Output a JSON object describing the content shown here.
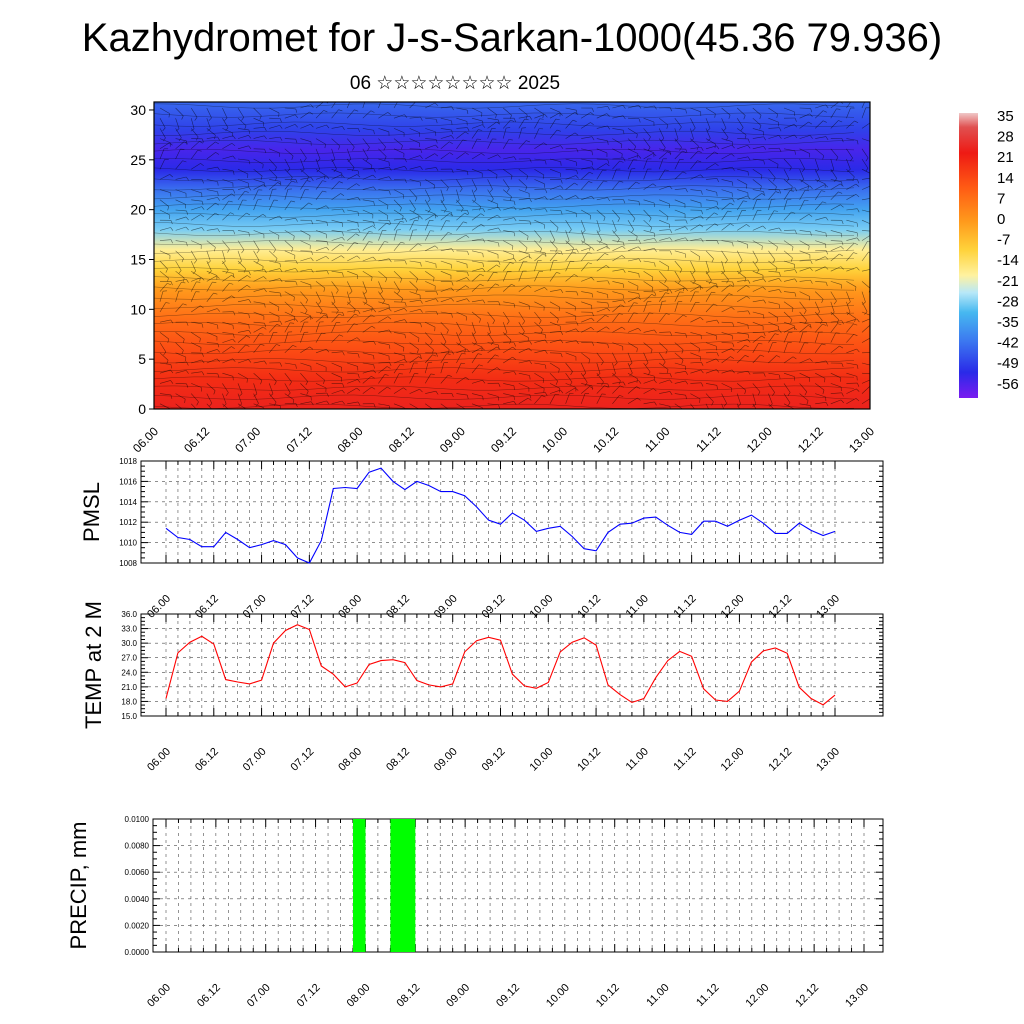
{
  "title": "Kazhydromet for J-s-Sarkan-1000(45.36 79.936)",
  "subtitle": "06 ☆☆☆☆☆☆☆☆ 2025",
  "time_labels": [
    "06.00",
    "06.12",
    "07.00",
    "07.12",
    "08.00",
    "08.12",
    "09.00",
    "09.12",
    "10.00",
    "10.12",
    "11.00",
    "11.12",
    "12.00",
    "12.12",
    "13.00"
  ],
  "chart_data": [
    {
      "type": "heatmap",
      "yticks": [
        0,
        5,
        10,
        15,
        20,
        25,
        30
      ],
      "ylim": [
        0,
        30.8
      ],
      "colorbar": {
        "labels": [
          "35",
          "28",
          "21",
          "14",
          "7",
          "0",
          "-7",
          "-14",
          "-21",
          "-28",
          "-35",
          "-42",
          "-49",
          "-56"
        ],
        "range": [
          -60,
          38
        ]
      },
      "profile": {
        "heights": [
          0,
          3,
          6,
          9,
          12,
          14,
          16,
          18,
          20,
          22,
          24,
          26,
          28,
          30.8
        ],
        "temps": [
          25,
          21,
          16,
          11,
          4,
          -5,
          -13,
          -26,
          -34,
          -43,
          -52,
          -55,
          -49,
          -44
        ]
      }
    },
    {
      "type": "line",
      "ylabel": "PMSL",
      "color": "#0000ff",
      "ylim": [
        1008,
        1018
      ],
      "yticks": [
        "1008",
        "1010",
        "1012",
        "1014",
        "1016",
        "1018"
      ],
      "values": [
        1011.4,
        1010.5,
        1010.3,
        1009.6,
        1009.6,
        1011.0,
        1010.3,
        1009.5,
        1009.8,
        1010.2,
        1009.8,
        1008.5,
        1008.0,
        1010.2,
        1015.3,
        1015.4,
        1015.3,
        1016.9,
        1017.3,
        1016.0,
        1015.2,
        1016.0,
        1015.6,
        1015.0,
        1015.0,
        1014.6,
        1013.5,
        1012.2,
        1011.8,
        1012.9,
        1012.2,
        1011.1,
        1011.4,
        1011.6,
        1010.6,
        1009.4,
        1009.2,
        1011.0,
        1011.8,
        1011.9,
        1012.4,
        1012.5,
        1011.7,
        1011.0,
        1010.8,
        1012.1,
        1012.1,
        1011.6,
        1012.2,
        1012.7,
        1011.9,
        1010.9,
        1010.9,
        1011.9,
        1011.2,
        1010.7,
        1011.1
      ]
    },
    {
      "type": "line",
      "ylabel": "TEMP at 2 M",
      "color": "#ff0000",
      "ylim": [
        15,
        36
      ],
      "yticks": [
        "15.0",
        "18.0",
        "21.0",
        "24.0",
        "27.0",
        "30.0",
        "33.0",
        "36.0"
      ],
      "values": [
        18.6,
        28.0,
        30.2,
        31.4,
        29.8,
        22.5,
        22.0,
        21.6,
        22.4,
        30.0,
        32.6,
        33.8,
        32.8,
        25.3,
        23.6,
        21.0,
        21.8,
        25.6,
        26.4,
        26.6,
        26.0,
        22.3,
        21.4,
        21.0,
        21.6,
        28.2,
        30.5,
        31.2,
        30.6,
        23.6,
        21.2,
        20.7,
        21.9,
        28.2,
        30.2,
        31.1,
        29.6,
        21.4,
        19.4,
        17.8,
        18.6,
        22.9,
        26.4,
        28.3,
        27.3,
        20.6,
        18.3,
        18.0,
        20.1,
        26.1,
        28.4,
        29.0,
        27.9,
        20.9,
        18.6,
        17.3,
        19.3
      ]
    },
    {
      "type": "bar",
      "ylabel": "PRECIP, mm",
      "color": "#00ff00",
      "ylim": [
        0,
        0.01
      ],
      "yticks": [
        "0.0000",
        "0.0020",
        "0.0040",
        "0.0060",
        "0.0080",
        "0.0100"
      ],
      "bars": [
        {
          "start_h": 45,
          "end_h": 48,
          "value": 0.01
        },
        {
          "start_h": 54,
          "end_h": 60,
          "value": 0.01
        }
      ]
    }
  ]
}
